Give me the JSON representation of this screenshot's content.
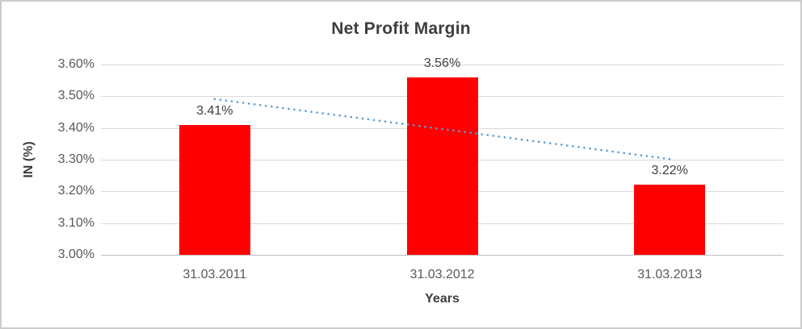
{
  "chart_data": {
    "type": "bar",
    "title": "Net Profit Margin",
    "xlabel": "Years",
    "ylabel": "IN (%)",
    "categories": [
      "31.03.2011",
      "31.03.2012",
      "31.03.2013"
    ],
    "values": [
      3.41,
      3.56,
      3.22
    ],
    "data_labels": [
      "3.41%",
      "3.56%",
      "3.22%"
    ],
    "ylim": [
      3.0,
      3.6
    ],
    "ytick_step": 0.1,
    "ytick_labels": [
      "3.00%",
      "3.10%",
      "3.20%",
      "3.30%",
      "3.40%",
      "3.50%",
      "3.60%"
    ],
    "grid": true,
    "legend": "none",
    "trendline": {
      "type": "linear",
      "style": "dotted",
      "start_value": 3.491,
      "end_value": 3.302,
      "color": "#5B9BD5"
    },
    "colors": {
      "bar": "#FF0000",
      "gridline": "#D9D9D9",
      "axis_line": "#BFBFBF",
      "title_text": "#3E3E3E",
      "tick_text": "#595959",
      "data_label_text": "#404040",
      "border": "#CCCCCC",
      "background": "#FFFFFF"
    }
  }
}
